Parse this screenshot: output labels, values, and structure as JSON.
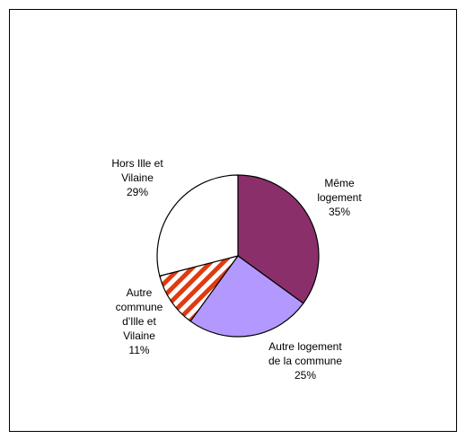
{
  "chart_data": {
    "type": "pie",
    "categories": [
      "Même logement",
      "Autre logement de la commune",
      "Autre commune d'Ille et Vilaine",
      "Hors Ille et Vilaine"
    ],
    "values": [
      35,
      25,
      11,
      29
    ],
    "value_labels": [
      "35%",
      "25%",
      "11%",
      "29%"
    ],
    "colors": [
      "#8b2f6b",
      "#b399ff",
      "#e03a10",
      "#ffffff"
    ],
    "hatch": [
      false,
      false,
      true,
      false
    ]
  }
}
